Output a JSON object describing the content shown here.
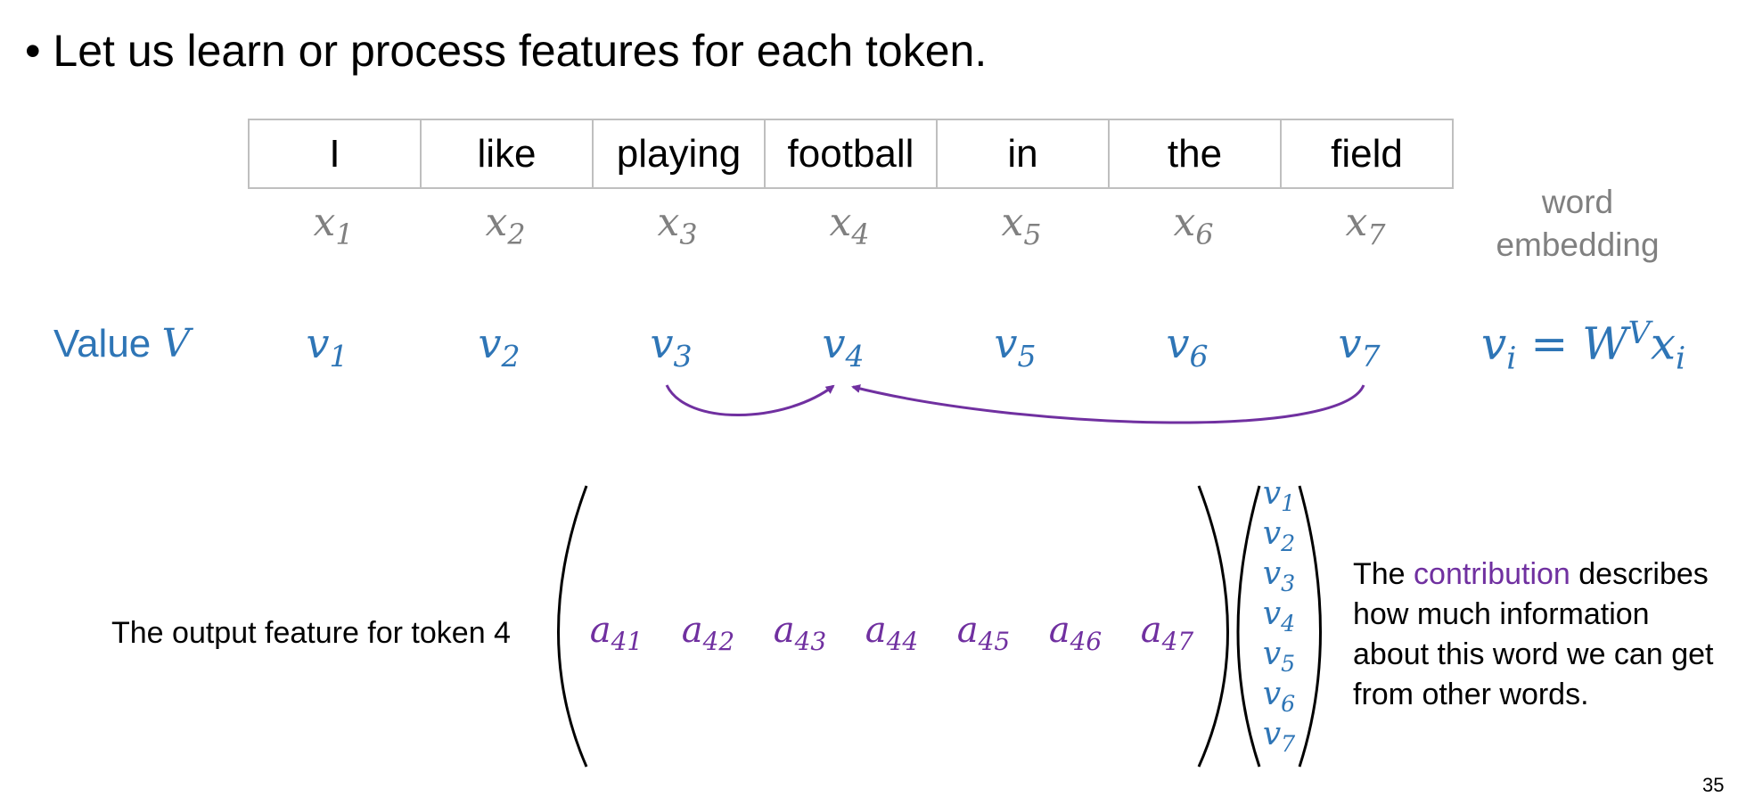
{
  "bullet": {
    "marker": "•",
    "text": "Let us learn or process features for each token."
  },
  "tokens": [
    "I",
    "like",
    "playing",
    "football",
    "in",
    "the",
    "field"
  ],
  "embeddings": {
    "base": "x",
    "subscripts": [
      "1",
      "2",
      "3",
      "4",
      "5",
      "6",
      "7"
    ],
    "caption_line1": "word",
    "caption_line2": "embedding"
  },
  "values": {
    "row_label": "Value",
    "row_label_symbol": "V",
    "base": "v",
    "subscripts": [
      "1",
      "2",
      "3",
      "4",
      "5",
      "6",
      "7"
    ]
  },
  "formula": {
    "lhs": "v",
    "lhs_sub": "i",
    "eq": " = ",
    "w": "W",
    "w_sup": "V",
    "x": "x",
    "x_sub": "i"
  },
  "output": {
    "label": "The output feature for token 4",
    "coeff_base": "a",
    "coeff_subscripts": [
      "41",
      "42",
      "43",
      "44",
      "45",
      "46",
      "47"
    ]
  },
  "description": {
    "prefix": "The ",
    "highlight": "contribution",
    "line1_suffix": " describes",
    "line2": "how much information",
    "line3": "about this word we can get",
    "line4": "from other words."
  },
  "page_number": "35",
  "colors": {
    "blue": "#2e75b6",
    "purple": "#7030a0",
    "gray": "#808080",
    "table_border": "#bfbfbf"
  }
}
